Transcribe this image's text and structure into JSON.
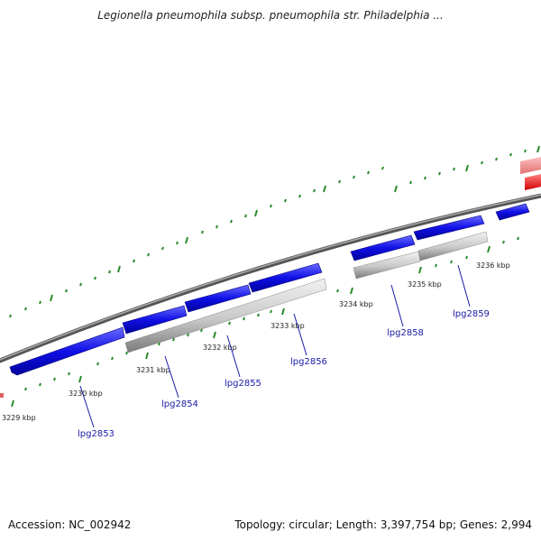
{
  "title": "Legionella pneumophila subsp. pneumophila str. Philadelphia ...",
  "footer": {
    "accession": "Accession: NC_002942",
    "stats": "Topology: circular; Length: 3,397,754 bp; Genes: 2,994"
  },
  "colors": {
    "backbone": "#888888",
    "forward_gene": "#1010e6",
    "reverse_gene": "#c8c8c8",
    "other_track": "#ff2020",
    "ticks": "#2a8a2a",
    "gene_label": "#1a1aa6"
  },
  "scale_labels": [
    "3229 kbp",
    "3230 kbp",
    "3231 kbp",
    "3232 kbp",
    "3233 kbp",
    "3234 kbp",
    "3235 kbp",
    "3236 kbp"
  ],
  "gene_labels": [
    "lpg2853",
    "lpg2854",
    "lpg2855",
    "lpg2856",
    "lpg2858",
    "lpg2859"
  ]
}
